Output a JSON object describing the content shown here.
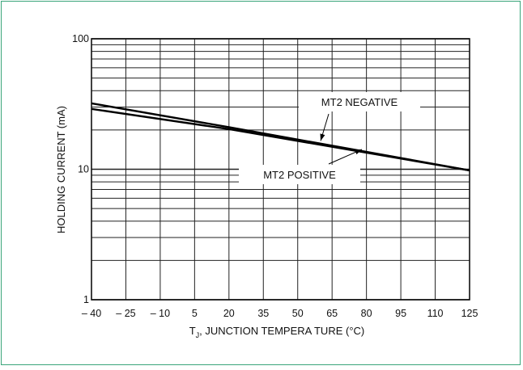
{
  "chart_data": {
    "type": "line",
    "xlabel_prefix": "T",
    "xlabel_sub": "J",
    "xlabel_rest": ", JUNCTION TEMPERA TURE (",
    "xlabel_unit": "°C",
    "xlabel_end": ")",
    "ylabel": "HOLDING CURRENT (mA)",
    "x_ticks": [
      -40,
      -25,
      -10,
      5,
      20,
      35,
      50,
      65,
      80,
      95,
      110,
      125
    ],
    "x_tick_labels": [
      "– 40",
      "– 25",
      "– 10",
      "5",
      "20",
      "35",
      "50",
      "65",
      "80",
      "95",
      "110",
      "125"
    ],
    "y_scale": "log",
    "y_ticks": [
      1,
      10,
      100
    ],
    "y_tick_labels": [
      "1",
      "10",
      "100"
    ],
    "xlim": [
      -40,
      125
    ],
    "ylim": [
      1,
      100
    ],
    "grid": true,
    "series": [
      {
        "name": "MT2 NEGATIVE",
        "x": [
          -40,
          20,
          125
        ],
        "y": [
          32,
          21,
          9.8
        ]
      },
      {
        "name": "MT2 POSITIVE",
        "x": [
          -40,
          20,
          125
        ],
        "y": [
          29,
          20.3,
          9.8
        ]
      }
    ],
    "annotations": [
      {
        "text": "MT2 NEGATIVE",
        "points_to": {
          "x": 60,
          "y": 16.5
        }
      },
      {
        "text": "MT2 POSITIVE",
        "points_to": {
          "x": 78,
          "y": 14.2
        }
      }
    ]
  },
  "colors": {
    "frame": "#3aa57a",
    "ink": "#111111",
    "line": "#000000"
  }
}
